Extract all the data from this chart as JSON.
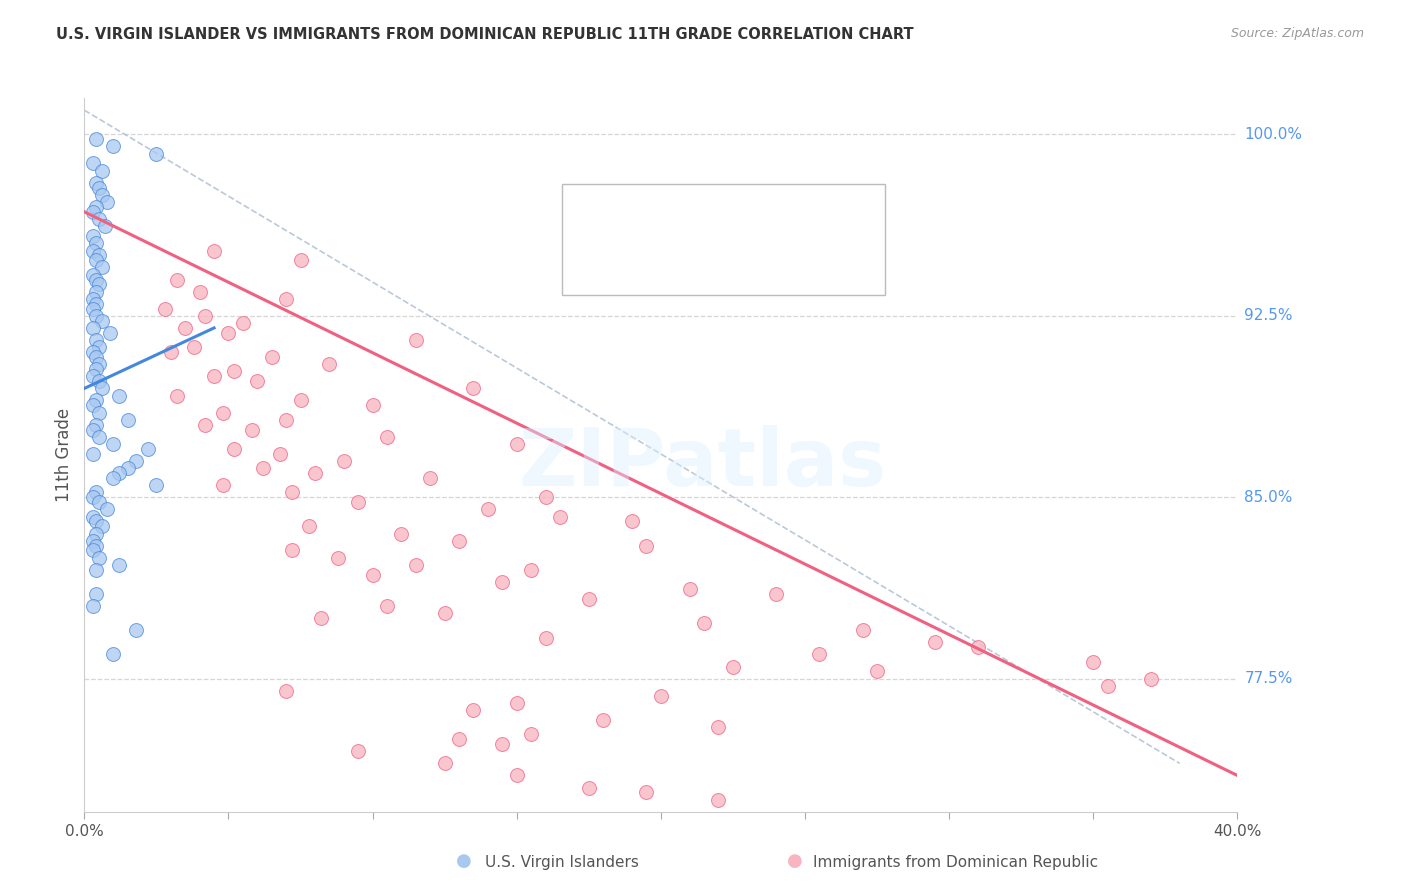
{
  "title": "U.S. VIRGIN ISLANDER VS IMMIGRANTS FROM DOMINICAN REPUBLIC 11TH GRADE CORRELATION CHART",
  "source": "Source: ZipAtlas.com",
  "ylabel": "11th Grade",
  "xmin": 0.0,
  "xmax": 40.0,
  "ymin": 72.0,
  "ymax": 101.5,
  "right_yticks": [
    100.0,
    92.5,
    85.0,
    77.5
  ],
  "right_ytick_labels": [
    "100.0%",
    "92.5%",
    "85.0%",
    "77.5%"
  ],
  "blue_scatter_color": "#a8c8f0",
  "pink_scatter_color": "#f8b4c0",
  "blue_line_color": "#4488dd",
  "pink_line_color": "#f06080",
  "right_label_color": "#5599ee",
  "background_color": "#ffffff",
  "gridline_color": "#cccccc",
  "blue_scatter": [
    [
      0.4,
      99.8
    ],
    [
      1.0,
      99.5
    ],
    [
      2.5,
      99.2
    ],
    [
      0.3,
      98.8
    ],
    [
      0.6,
      98.5
    ],
    [
      0.4,
      98.0
    ],
    [
      0.5,
      97.8
    ],
    [
      0.6,
      97.5
    ],
    [
      0.8,
      97.2
    ],
    [
      0.4,
      97.0
    ],
    [
      0.3,
      96.8
    ],
    [
      0.5,
      96.5
    ],
    [
      0.7,
      96.2
    ],
    [
      0.3,
      95.8
    ],
    [
      0.4,
      95.5
    ],
    [
      0.3,
      95.2
    ],
    [
      0.5,
      95.0
    ],
    [
      0.4,
      94.8
    ],
    [
      0.6,
      94.5
    ],
    [
      0.3,
      94.2
    ],
    [
      0.4,
      94.0
    ],
    [
      0.5,
      93.8
    ],
    [
      0.4,
      93.5
    ],
    [
      0.3,
      93.2
    ],
    [
      0.4,
      93.0
    ],
    [
      0.3,
      92.8
    ],
    [
      0.4,
      92.5
    ],
    [
      0.6,
      92.3
    ],
    [
      0.3,
      92.0
    ],
    [
      0.9,
      91.8
    ],
    [
      0.4,
      91.5
    ],
    [
      0.5,
      91.2
    ],
    [
      0.3,
      91.0
    ],
    [
      0.4,
      90.8
    ],
    [
      0.5,
      90.5
    ],
    [
      0.4,
      90.3
    ],
    [
      0.3,
      90.0
    ],
    [
      0.5,
      89.8
    ],
    [
      0.6,
      89.5
    ],
    [
      1.2,
      89.2
    ],
    [
      0.4,
      89.0
    ],
    [
      0.3,
      88.8
    ],
    [
      0.5,
      88.5
    ],
    [
      1.5,
      88.2
    ],
    [
      0.4,
      88.0
    ],
    [
      0.3,
      87.8
    ],
    [
      0.5,
      87.5
    ],
    [
      1.0,
      87.2
    ],
    [
      2.2,
      87.0
    ],
    [
      0.3,
      86.8
    ],
    [
      1.8,
      86.5
    ],
    [
      1.5,
      86.2
    ],
    [
      1.2,
      86.0
    ],
    [
      1.0,
      85.8
    ],
    [
      2.5,
      85.5
    ],
    [
      0.4,
      85.2
    ],
    [
      0.3,
      85.0
    ],
    [
      0.5,
      84.8
    ],
    [
      0.8,
      84.5
    ],
    [
      0.3,
      84.2
    ],
    [
      0.4,
      84.0
    ],
    [
      0.6,
      83.8
    ],
    [
      0.4,
      83.5
    ],
    [
      0.3,
      83.2
    ],
    [
      0.4,
      83.0
    ],
    [
      0.3,
      82.8
    ],
    [
      0.5,
      82.5
    ],
    [
      1.2,
      82.2
    ],
    [
      0.4,
      82.0
    ],
    [
      0.4,
      81.0
    ],
    [
      0.3,
      80.5
    ],
    [
      1.8,
      79.5
    ],
    [
      1.0,
      78.5
    ]
  ],
  "pink_scatter": [
    [
      4.5,
      95.2
    ],
    [
      7.5,
      94.8
    ],
    [
      3.2,
      94.0
    ],
    [
      4.0,
      93.5
    ],
    [
      7.0,
      93.2
    ],
    [
      2.8,
      92.8
    ],
    [
      4.2,
      92.5
    ],
    [
      5.5,
      92.2
    ],
    [
      3.5,
      92.0
    ],
    [
      5.0,
      91.8
    ],
    [
      11.5,
      91.5
    ],
    [
      3.8,
      91.2
    ],
    [
      3.0,
      91.0
    ],
    [
      6.5,
      90.8
    ],
    [
      8.5,
      90.5
    ],
    [
      5.2,
      90.2
    ],
    [
      4.5,
      90.0
    ],
    [
      6.0,
      89.8
    ],
    [
      13.5,
      89.5
    ],
    [
      3.2,
      89.2
    ],
    [
      7.5,
      89.0
    ],
    [
      10.0,
      88.8
    ],
    [
      4.8,
      88.5
    ],
    [
      7.0,
      88.2
    ],
    [
      4.2,
      88.0
    ],
    [
      5.8,
      87.8
    ],
    [
      10.5,
      87.5
    ],
    [
      15.0,
      87.2
    ],
    [
      5.2,
      87.0
    ],
    [
      6.8,
      86.8
    ],
    [
      9.0,
      86.5
    ],
    [
      6.2,
      86.2
    ],
    [
      8.0,
      86.0
    ],
    [
      12.0,
      85.8
    ],
    [
      4.8,
      85.5
    ],
    [
      7.2,
      85.2
    ],
    [
      16.0,
      85.0
    ],
    [
      9.5,
      84.8
    ],
    [
      14.0,
      84.5
    ],
    [
      16.5,
      84.2
    ],
    [
      19.0,
      84.0
    ],
    [
      7.8,
      83.8
    ],
    [
      11.0,
      83.5
    ],
    [
      13.0,
      83.2
    ],
    [
      19.5,
      83.0
    ],
    [
      7.2,
      82.8
    ],
    [
      8.8,
      82.5
    ],
    [
      11.5,
      82.2
    ],
    [
      15.5,
      82.0
    ],
    [
      10.0,
      81.8
    ],
    [
      14.5,
      81.5
    ],
    [
      21.0,
      81.2
    ],
    [
      24.0,
      81.0
    ],
    [
      17.5,
      80.8
    ],
    [
      10.5,
      80.5
    ],
    [
      12.5,
      80.2
    ],
    [
      8.2,
      80.0
    ],
    [
      21.5,
      79.8
    ],
    [
      27.0,
      79.5
    ],
    [
      16.0,
      79.2
    ],
    [
      29.5,
      79.0
    ],
    [
      31.0,
      78.8
    ],
    [
      25.5,
      78.5
    ],
    [
      35.0,
      78.2
    ],
    [
      22.5,
      78.0
    ],
    [
      27.5,
      77.8
    ],
    [
      37.0,
      77.5
    ],
    [
      35.5,
      77.2
    ],
    [
      7.0,
      77.0
    ],
    [
      20.0,
      76.8
    ],
    [
      15.0,
      76.5
    ],
    [
      13.5,
      76.2
    ],
    [
      18.0,
      75.8
    ],
    [
      22.0,
      75.5
    ],
    [
      15.5,
      75.2
    ],
    [
      13.0,
      75.0
    ],
    [
      14.5,
      74.8
    ],
    [
      9.5,
      74.5
    ],
    [
      12.5,
      74.0
    ],
    [
      15.0,
      73.5
    ],
    [
      17.5,
      73.0
    ],
    [
      19.5,
      72.8
    ],
    [
      22.0,
      72.5
    ]
  ],
  "blue_line_x": [
    0.0,
    4.5
  ],
  "blue_line_y": [
    89.5,
    92.0
  ],
  "pink_line_x": [
    0.0,
    40.0
  ],
  "pink_line_y": [
    96.8,
    73.5
  ],
  "ref_line_x": [
    0.0,
    38.0
  ],
  "ref_line_y": [
    101.0,
    74.0
  ]
}
